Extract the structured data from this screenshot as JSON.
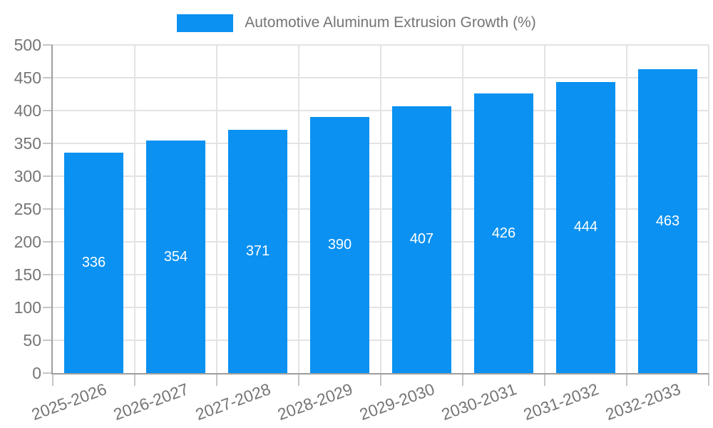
{
  "chart_data": {
    "type": "bar",
    "title": "Automotive Aluminum Extrusion Growth (%)",
    "categories": [
      "2025-2026",
      "2026-2027",
      "2027-2028",
      "2028-2029",
      "2029-2030",
      "2030-2031",
      "2031-2032",
      "2032-2033"
    ],
    "values": [
      336,
      354,
      371,
      390,
      407,
      426,
      444,
      463
    ],
    "xlabel": "",
    "ylabel": "",
    "ylim": [
      0,
      500
    ],
    "ytick_step": 50,
    "grid": true,
    "legend_position": "top",
    "bar_label_position": "inside-center",
    "colors": {
      "bar": "#0a91f1",
      "value_label": "#ffffff",
      "axis_text": "#757575",
      "gridline": "#e3e3e3",
      "axis_line": "#9e9e9e",
      "tick": "#c6c6c6",
      "background": "#ffffff"
    }
  }
}
